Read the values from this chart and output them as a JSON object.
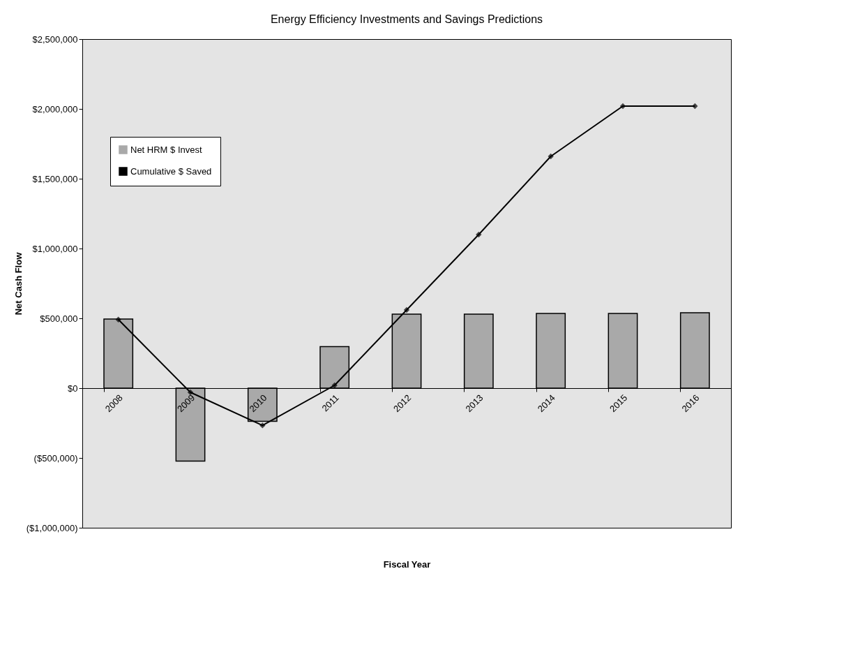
{
  "chart_data": {
    "type": "bar",
    "title": "Energy Efficiency Investments and Savings Predictions",
    "xlabel": "Fiscal Year",
    "ylabel": "Net Cash Flow",
    "categories": [
      "2008",
      "2009",
      "2010",
      "2011",
      "2012",
      "2013",
      "2014",
      "2015",
      "2016"
    ],
    "series": [
      {
        "name": "Net HRM $ Invest",
        "color": "#a9a9a9",
        "values": [
          495000,
          -522000,
          -237000,
          297000,
          530000,
          530000,
          535000,
          535000,
          540000
        ]
      },
      {
        "name": "Cumulative $ Saved",
        "type": "line",
        "color": "#000000",
        "marker": "diamond",
        "values": [
          491000,
          -30000,
          -267000,
          20000,
          560000,
          1100000,
          1660000,
          2020000,
          2020000
        ]
      }
    ],
    "ylim": [
      -1000000,
      2500000
    ],
    "yticks": [
      {
        "value": -1000000,
        "label": "($1,000,000)"
      },
      {
        "value": -500000,
        "label": "($500,000)"
      },
      {
        "value": 0,
        "label": "$0"
      },
      {
        "value": 500000,
        "label": "$500,000"
      },
      {
        "value": 1000000,
        "label": "$1,000,000"
      },
      {
        "value": 1500000,
        "label": "$1,500,000"
      },
      {
        "value": 2000000,
        "label": "$2,000,000"
      },
      {
        "value": 2500000,
        "label": "$2,500,000"
      }
    ],
    "legend": "top left"
  }
}
